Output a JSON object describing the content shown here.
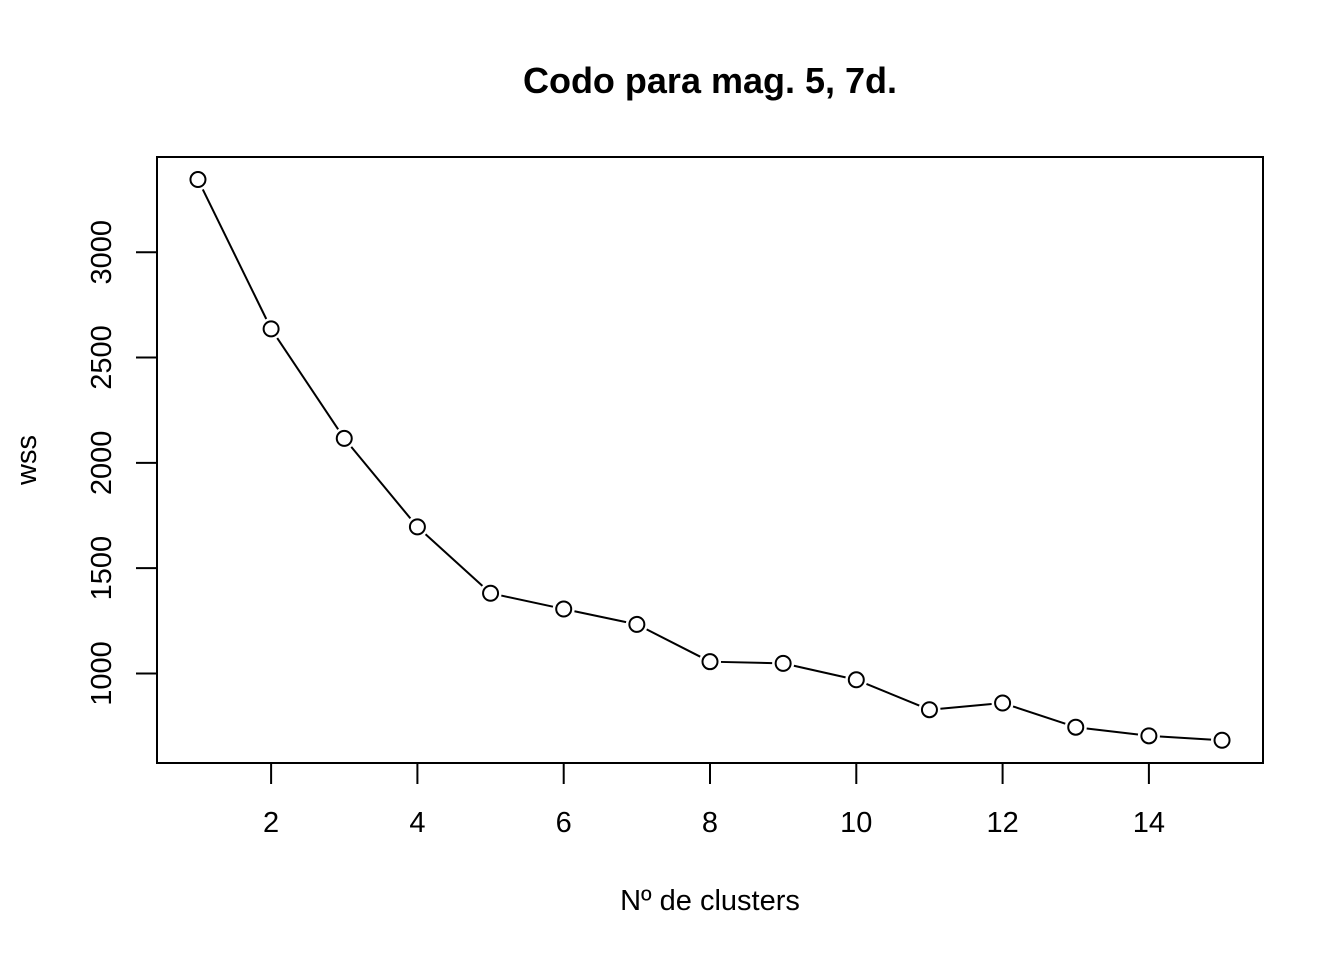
{
  "chart_data": {
    "type": "line",
    "title": "Codo para mag. 5, 7d.",
    "xlabel": "Nº de clusters",
    "ylabel": "wss",
    "x": [
      1,
      2,
      3,
      4,
      5,
      6,
      7,
      8,
      9,
      10,
      11,
      12,
      13,
      14,
      15
    ],
    "series": [
      {
        "values": [
          3345,
          2636,
          2116,
          1696,
          1381,
          1306,
          1233,
          1056,
          1048,
          970,
          828,
          860,
          745,
          704,
          683
        ],
        "color": "#000000",
        "marker": "open-circle",
        "line": "solid"
      }
    ],
    "xticks": [
      2,
      4,
      6,
      8,
      10,
      12,
      14
    ],
    "xtick_labels": [
      "2",
      "4",
      "6",
      "8",
      "10",
      "12",
      "14"
    ],
    "yticks": [
      1000,
      1500,
      2000,
      2500,
      3000
    ],
    "ytick_labels": [
      "1000",
      "1500",
      "2000",
      "2500",
      "3000"
    ],
    "xlim": [
      0.44,
      15.56
    ],
    "ylim": [
      575,
      3452
    ],
    "grid": false,
    "legend": "none"
  }
}
